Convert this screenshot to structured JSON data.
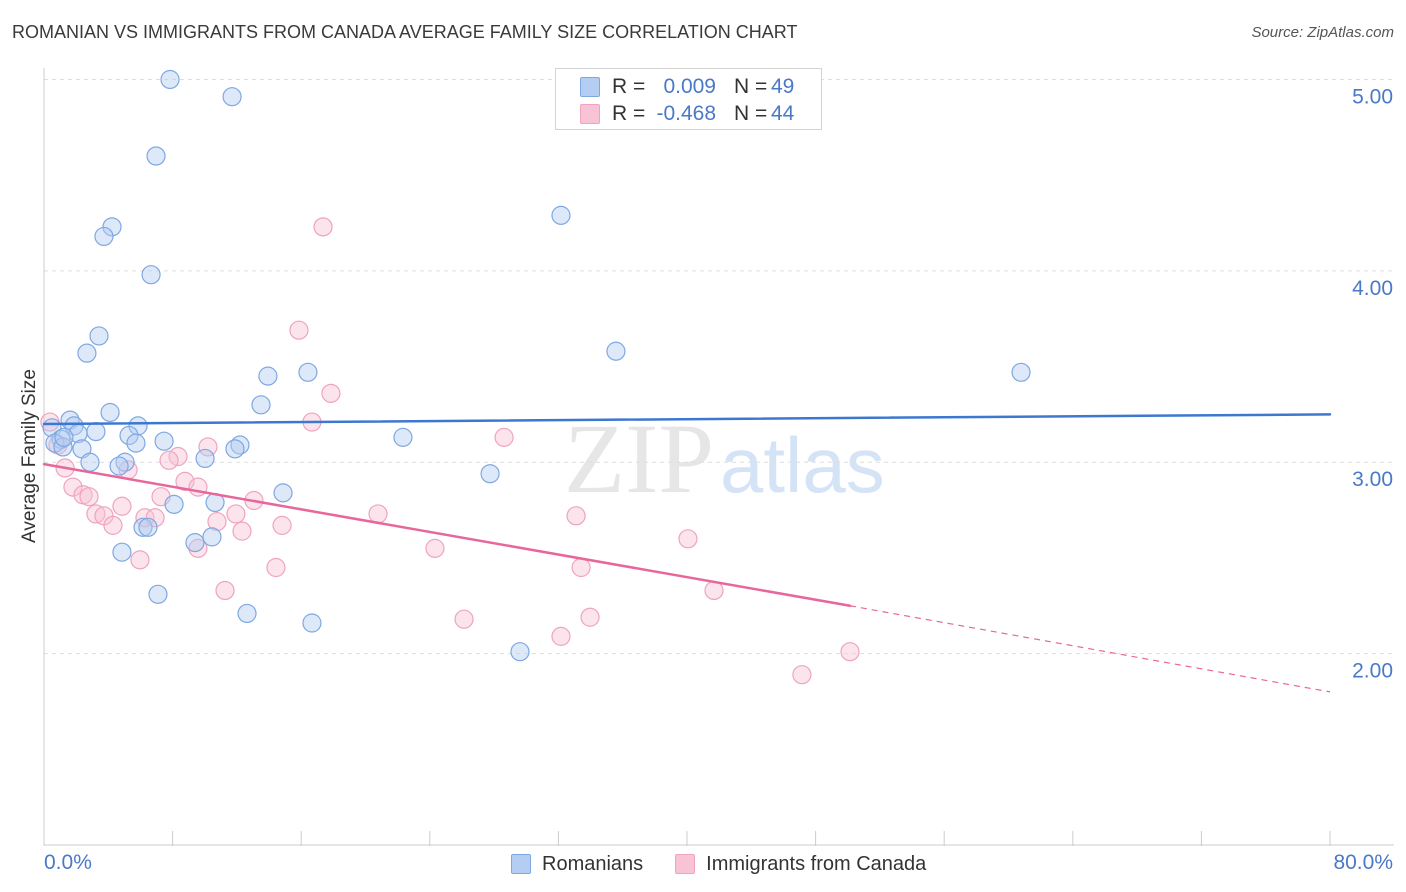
{
  "source": "Source: ZipAtlas.com",
  "watermark": {
    "zip": "ZIP",
    "atlas": "atlas"
  },
  "legend": {
    "r_label": "R =",
    "n_label": "N ="
  },
  "colors": {
    "grid": "#dedede",
    "axis": "#cccccc"
  },
  "chart_data": {
    "type": "scatter",
    "title": "ROMANIAN VS IMMIGRANTS FROM CANADA AVERAGE FAMILY SIZE CORRELATION CHART",
    "ylabel": "Average Family Size",
    "xlim": [
      0,
      80
    ],
    "ylim": [
      1.0,
      5.06
    ],
    "x_ticks": [
      0,
      8,
      16,
      24,
      32,
      40,
      48,
      56,
      64,
      72,
      80
    ],
    "x_tick_labels": [
      "0.0%",
      "80.0%"
    ],
    "y_ticks": [
      2,
      3,
      4,
      5
    ],
    "y_tick_labels": [
      "2.00",
      "3.00",
      "4.00",
      "5.00"
    ],
    "legend_position": "top-center",
    "series": [
      {
        "name": "Romanians",
        "r": "0.009",
        "n": "49",
        "fill": "#b4cdf2",
        "stroke": "#7ea8e2",
        "trend_color": "#3d78d0",
        "points": [
          [
            7.84,
            5.0
          ],
          [
            11.7,
            4.91
          ],
          [
            6.97,
            4.6
          ],
          [
            32.16,
            4.29
          ],
          [
            4.23,
            4.23
          ],
          [
            3.73,
            4.18
          ],
          [
            6.66,
            3.98
          ],
          [
            3.42,
            3.66
          ],
          [
            2.67,
            3.57
          ],
          [
            35.58,
            3.58
          ],
          [
            60.78,
            3.47
          ],
          [
            16.42,
            3.47
          ],
          [
            13.93,
            3.45
          ],
          [
            13.5,
            3.3
          ],
          [
            4.11,
            3.26
          ],
          [
            1.62,
            3.22
          ],
          [
            1.87,
            3.19
          ],
          [
            5.85,
            3.19
          ],
          [
            0.5,
            3.18
          ],
          [
            3.23,
            3.16
          ],
          [
            2.12,
            3.15
          ],
          [
            1.06,
            3.12
          ],
          [
            5.29,
            3.14
          ],
          [
            22.33,
            3.13
          ],
          [
            7.47,
            3.11
          ],
          [
            12.19,
            3.09
          ],
          [
            0.68,
            3.1
          ],
          [
            5.72,
            3.1
          ],
          [
            1.18,
            3.08
          ],
          [
            2.36,
            3.07
          ],
          [
            11.88,
            3.07
          ],
          [
            10.02,
            3.02
          ],
          [
            2.86,
            3.0
          ],
          [
            5.04,
            3.0
          ],
          [
            4.67,
            2.98
          ],
          [
            27.75,
            2.94
          ],
          [
            14.87,
            2.84
          ],
          [
            8.09,
            2.78
          ],
          [
            10.64,
            2.79
          ],
          [
            6.16,
            2.66
          ],
          [
            6.47,
            2.66
          ],
          [
            10.45,
            2.61
          ],
          [
            9.39,
            2.58
          ],
          [
            4.85,
            2.53
          ],
          [
            7.09,
            2.31
          ],
          [
            12.63,
            2.21
          ],
          [
            16.67,
            2.16
          ],
          [
            29.61,
            2.01
          ],
          [
            1.24,
            3.13
          ]
        ],
        "trend": {
          "solid": [
            [
              0,
              3.2
            ],
            [
              80,
              3.25
            ]
          ],
          "dashed": []
        }
      },
      {
        "name": "Immigrants from Canada",
        "r": "-0.468",
        "n": "44",
        "fill": "#f7c3d5",
        "stroke": "#f0a3bf",
        "trend_color": "#e8679a",
        "points": [
          [
            17.36,
            4.23
          ],
          [
            15.86,
            3.69
          ],
          [
            17.85,
            3.36
          ],
          [
            16.67,
            3.21
          ],
          [
            28.62,
            3.13
          ],
          [
            10.2,
            3.08
          ],
          [
            8.34,
            3.03
          ],
          [
            7.78,
            3.01
          ],
          [
            1.31,
            2.97
          ],
          [
            5.23,
            2.96
          ],
          [
            8.77,
            2.9
          ],
          [
            9.58,
            2.87
          ],
          [
            1.8,
            2.87
          ],
          [
            2.43,
            2.83
          ],
          [
            2.8,
            2.82
          ],
          [
            7.28,
            2.82
          ],
          [
            13.06,
            2.8
          ],
          [
            4.85,
            2.77
          ],
          [
            3.23,
            2.73
          ],
          [
            3.73,
            2.72
          ],
          [
            20.78,
            2.73
          ],
          [
            33.1,
            2.72
          ],
          [
            11.94,
            2.73
          ],
          [
            6.28,
            2.71
          ],
          [
            6.91,
            2.71
          ],
          [
            10.76,
            2.69
          ],
          [
            4.29,
            2.67
          ],
          [
            14.81,
            2.67
          ],
          [
            12.32,
            2.64
          ],
          [
            40.06,
            2.6
          ],
          [
            9.58,
            2.55
          ],
          [
            24.32,
            2.55
          ],
          [
            5.97,
            2.49
          ],
          [
            14.43,
            2.45
          ],
          [
            33.41,
            2.45
          ],
          [
            11.26,
            2.33
          ],
          [
            41.68,
            2.33
          ],
          [
            33.97,
            2.19
          ],
          [
            26.13,
            2.18
          ],
          [
            32.16,
            2.09
          ],
          [
            50.14,
            2.01
          ],
          [
            47.15,
            1.89
          ],
          [
            0.37,
            3.21
          ],
          [
            0.87,
            3.09
          ]
        ],
        "trend": {
          "solid": [
            [
              0,
              2.99
            ],
            [
              50.14,
              2.25
            ]
          ],
          "dashed": [
            [
              50.14,
              2.25
            ],
            [
              80,
              1.8
            ]
          ]
        }
      }
    ]
  }
}
